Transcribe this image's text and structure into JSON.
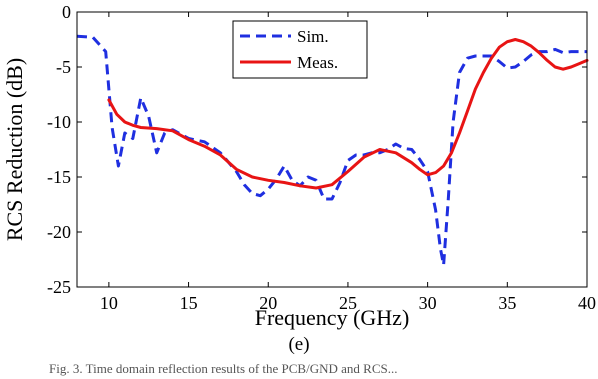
{
  "chart_data": {
    "type": "line",
    "title": "",
    "xlabel": "Frequency (GHz)",
    "ylabel": "RCS Reduction (dB)",
    "xlim": [
      8,
      40
    ],
    "ylim": [
      -25,
      0
    ],
    "xticks": [
      10,
      15,
      20,
      25,
      30,
      35,
      40
    ],
    "yticks": [
      0,
      -5,
      -10,
      -15,
      -20,
      -25
    ],
    "grid": false,
    "legend": "top-center",
    "series": [
      {
        "name": "Sim.",
        "color": "#1f2fe0",
        "style": "dashed",
        "x": [
          8,
          9,
          9.8,
          10.2,
          10.6,
          11,
          11.5,
          12,
          12.5,
          13,
          13.5,
          14,
          15,
          16,
          17,
          18,
          18.5,
          19,
          19.5,
          20,
          20.5,
          21,
          21.5,
          22,
          22.5,
          23,
          23.5,
          24,
          24.5,
          25,
          25.5,
          26,
          26.5,
          27,
          27.5,
          28,
          28.5,
          29,
          29.5,
          30,
          30.5,
          30.8,
          31,
          31.3,
          31.6,
          32,
          32.5,
          33,
          33.5,
          34,
          34.5,
          35,
          35.5,
          36,
          36.5,
          37,
          37.5,
          38,
          38.5,
          39,
          39.5,
          40
        ],
        "values": [
          -2.2,
          -2.3,
          -3.6,
          -10.5,
          -14,
          -11,
          -11.5,
          -7.8,
          -9.5,
          -12.8,
          -11,
          -10.7,
          -11.5,
          -11.8,
          -12.8,
          -14.5,
          -15.7,
          -16.5,
          -16.7,
          -16.1,
          -15.2,
          -14,
          -15.3,
          -15.8,
          -15,
          -15.3,
          -17,
          -17,
          -15.5,
          -13.5,
          -13,
          -13,
          -12.8,
          -12.8,
          -12.5,
          -12,
          -12.4,
          -12.5,
          -13.4,
          -14.5,
          -18,
          -21.5,
          -23,
          -17,
          -10,
          -5.5,
          -4.2,
          -4,
          -4,
          -4,
          -4.5,
          -5.1,
          -5,
          -4.5,
          -3.9,
          -3.6,
          -3.6,
          -3.4,
          -3.7,
          -3.6,
          -3.6,
          -3.6
        ]
      },
      {
        "name": "Meas.",
        "color": "#e81414",
        "style": "solid",
        "x": [
          10,
          10.5,
          11,
          11.5,
          12,
          13,
          14,
          15,
          16,
          17,
          18,
          19,
          20,
          21,
          22,
          23,
          24,
          25,
          26,
          27,
          28,
          29,
          29.5,
          30,
          30.5,
          31,
          31.5,
          32,
          32.5,
          33,
          33.5,
          34,
          34.5,
          35,
          35.5,
          36,
          36.5,
          37,
          37.5,
          38,
          38.5,
          39,
          39.5,
          40
        ],
        "values": [
          -8,
          -9.3,
          -10,
          -10.3,
          -10.5,
          -10.6,
          -10.8,
          -11.6,
          -12.2,
          -13,
          -14.3,
          -15,
          -15.3,
          -15.5,
          -15.8,
          -16,
          -15.7,
          -14.5,
          -13.2,
          -12.5,
          -12.8,
          -13.7,
          -14.3,
          -14.8,
          -14.6,
          -14,
          -12.8,
          -11,
          -9,
          -7,
          -5.5,
          -4.2,
          -3.2,
          -2.7,
          -2.5,
          -2.7,
          -3.1,
          -3.7,
          -4.4,
          -5,
          -5.2,
          -5,
          -4.7,
          -4.4
        ]
      }
    ]
  },
  "caption": "(e)",
  "footnote": "Fig. 3.  Time domain reflection results of the PCB/GND and RCS..."
}
